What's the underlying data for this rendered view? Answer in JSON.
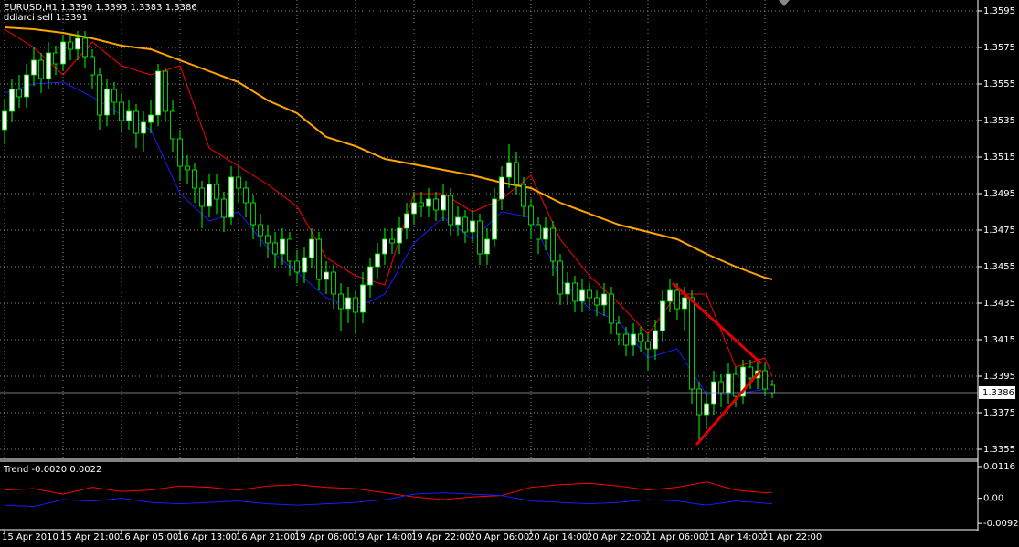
{
  "chart_data": [
    {
      "type": "candlestick",
      "header": "EURUSD,H1  1.3390 1.3393 1.3383 1.3386",
      "subheader": "ddiarci sell 1.3391",
      "categories": [
        "15 Apr 2010",
        "15 Apr 21:00",
        "16 Apr 05:00",
        "16 Apr 13:00",
        "16 Apr 21:00",
        "19 Apr 06:00",
        "19 Apr 14:00",
        "19 Apr 22:00",
        "20 Apr 06:00",
        "20 Apr 14:00",
        "20 Apr 22:00",
        "21 Apr 06:00",
        "21 Apr 14:00",
        "21 Apr 22:00"
      ],
      "open": [
        1.353,
        1.354,
        1.3552,
        1.3548,
        1.356,
        1.3568,
        1.3558,
        1.3572,
        1.3566,
        1.3578,
        1.3574,
        1.358,
        1.357,
        1.356,
        1.3538,
        1.3552,
        1.3545,
        1.3535,
        1.354,
        1.3528,
        1.3534,
        1.3538,
        1.3562,
        1.354,
        1.3525,
        1.351,
        1.3508,
        1.3498,
        1.3488,
        1.35,
        1.3492,
        1.3482,
        1.3504,
        1.3498,
        1.349,
        1.3478,
        1.3472,
        1.3468,
        1.3462,
        1.347,
        1.3458,
        1.3452,
        1.346,
        1.347,
        1.3448,
        1.3452,
        1.344,
        1.3432,
        1.3438,
        1.343,
        1.3445,
        1.3455,
        1.3462,
        1.347,
        1.3468,
        1.3476,
        1.3484,
        1.349,
        1.3488,
        1.3492,
        1.3486,
        1.3494,
        1.3478,
        1.3482,
        1.3474,
        1.348,
        1.3462,
        1.347,
        1.3492,
        1.3504,
        1.3512,
        1.35,
        1.3488,
        1.3478,
        1.347,
        1.3476,
        1.3458,
        1.344,
        1.3446,
        1.3436,
        1.3442,
        1.3438,
        1.3434,
        1.344,
        1.3424,
        1.3418,
        1.3412,
        1.3418,
        1.3414,
        1.341,
        1.342,
        1.3436,
        1.3442,
        1.3432,
        1.3438,
        1.3388,
        1.3374,
        1.338,
        1.3392,
        1.3386,
        1.3396,
        1.3384,
        1.34,
        1.3394,
        1.3398,
        1.339
      ],
      "high": [
        1.3546,
        1.3558,
        1.356,
        1.3566,
        1.3575,
        1.3572,
        1.3578,
        1.3576,
        1.3582,
        1.3582,
        1.3584,
        1.3584,
        1.3574,
        1.3564,
        1.3558,
        1.3556,
        1.355,
        1.3546,
        1.3544,
        1.354,
        1.3546,
        1.3566,
        1.3564,
        1.3546,
        1.353,
        1.3516,
        1.3512,
        1.3502,
        1.3506,
        1.3506,
        1.3496,
        1.351,
        1.351,
        1.3502,
        1.3494,
        1.3484,
        1.3478,
        1.3474,
        1.3476,
        1.3474,
        1.3464,
        1.3466,
        1.3476,
        1.3474,
        1.3458,
        1.3456,
        1.3446,
        1.3444,
        1.3442,
        1.3452,
        1.346,
        1.3468,
        1.3476,
        1.3476,
        1.3482,
        1.349,
        1.3496,
        1.3496,
        1.3498,
        1.3496,
        1.35,
        1.3498,
        1.3488,
        1.3486,
        1.3486,
        1.3484,
        1.3476,
        1.3498,
        1.351,
        1.3522,
        1.3518,
        1.3504,
        1.3492,
        1.3482,
        1.3482,
        1.348,
        1.3462,
        1.3452,
        1.345,
        1.3448,
        1.3446,
        1.3442,
        1.3446,
        1.3444,
        1.3428,
        1.3422,
        1.3424,
        1.3422,
        1.3418,
        1.3426,
        1.3442,
        1.3448,
        1.3446,
        1.3444,
        1.3442,
        1.3392,
        1.3386,
        1.3398,
        1.3396,
        1.3402,
        1.34,
        1.3404,
        1.3404,
        1.3404,
        1.3402,
        1.3393
      ],
      "low": [
        1.3522,
        1.3534,
        1.3542,
        1.3542,
        1.3554,
        1.355,
        1.3552,
        1.356,
        1.3562,
        1.3568,
        1.3568,
        1.3564,
        1.3552,
        1.353,
        1.3532,
        1.3538,
        1.3528,
        1.353,
        1.352,
        1.3518,
        1.3528,
        1.3532,
        1.3534,
        1.3518,
        1.3502,
        1.35,
        1.349,
        1.3476,
        1.3482,
        1.3484,
        1.3474,
        1.3478,
        1.349,
        1.3482,
        1.347,
        1.3466,
        1.346,
        1.3454,
        1.3456,
        1.345,
        1.3446,
        1.3446,
        1.3454,
        1.3442,
        1.344,
        1.3432,
        1.342,
        1.3424,
        1.3418,
        1.3424,
        1.3438,
        1.3448,
        1.3456,
        1.3462,
        1.3462,
        1.347,
        1.3478,
        1.3482,
        1.3482,
        1.348,
        1.348,
        1.3472,
        1.3472,
        1.3468,
        1.3468,
        1.3456,
        1.3456,
        1.3466,
        1.3486,
        1.3498,
        1.3494,
        1.3482,
        1.347,
        1.3462,
        1.3464,
        1.345,
        1.3434,
        1.3434,
        1.343,
        1.343,
        1.3432,
        1.3428,
        1.3428,
        1.3418,
        1.3412,
        1.3406,
        1.3406,
        1.3408,
        1.3398,
        1.3404,
        1.3414,
        1.343,
        1.3426,
        1.342,
        1.338,
        1.3358,
        1.3366,
        1.3374,
        1.3378,
        1.338,
        1.3378,
        1.338,
        1.3388,
        1.3388,
        1.3384,
        1.3383
      ],
      "close": [
        1.354,
        1.3552,
        1.3548,
        1.356,
        1.3568,
        1.3558,
        1.3572,
        1.3566,
        1.3578,
        1.3574,
        1.358,
        1.357,
        1.356,
        1.3538,
        1.3552,
        1.3545,
        1.3535,
        1.354,
        1.3528,
        1.3534,
        1.3538,
        1.3562,
        1.354,
        1.3525,
        1.351,
        1.3508,
        1.3498,
        1.3488,
        1.35,
        1.3492,
        1.3482,
        1.3504,
        1.3498,
        1.349,
        1.3478,
        1.3472,
        1.3468,
        1.3462,
        1.347,
        1.3458,
        1.3452,
        1.346,
        1.347,
        1.3448,
        1.3452,
        1.344,
        1.3432,
        1.3438,
        1.343,
        1.3445,
        1.3455,
        1.3462,
        1.347,
        1.3468,
        1.3476,
        1.3484,
        1.349,
        1.3488,
        1.3492,
        1.3486,
        1.3494,
        1.3478,
        1.3482,
        1.3474,
        1.348,
        1.3462,
        1.347,
        1.3492,
        1.3504,
        1.3512,
        1.35,
        1.3488,
        1.3478,
        1.347,
        1.3476,
        1.3458,
        1.344,
        1.3446,
        1.3436,
        1.3442,
        1.3438,
        1.3434,
        1.344,
        1.3424,
        1.3418,
        1.3412,
        1.3418,
        1.3414,
        1.341,
        1.342,
        1.3436,
        1.3442,
        1.3432,
        1.3438,
        1.3388,
        1.3374,
        1.338,
        1.3392,
        1.3386,
        1.3396,
        1.3384,
        1.34,
        1.3394,
        1.3398,
        1.3388,
        1.3386
      ],
      "series": [
        {
          "color": "#ff0000",
          "x": [
            0,
            4,
            8,
            12,
            16,
            20,
            24,
            28,
            32,
            36,
            40,
            44,
            48,
            52,
            56,
            60,
            64,
            68,
            72,
            76,
            80,
            84,
            88,
            92,
            96,
            100,
            104,
            105
          ],
          "values": [
            1.3585,
            1.3575,
            1.356,
            1.3578,
            1.3565,
            1.356,
            1.3565,
            1.352,
            1.351,
            1.35,
            1.3488,
            1.346,
            1.345,
            1.3445,
            1.3495,
            1.3495,
            1.3485,
            1.3492,
            1.3505,
            1.347,
            1.345,
            1.3435,
            1.3418,
            1.344,
            1.344,
            1.34,
            1.3405,
            1.3395
          ]
        },
        {
          "color": "#1a1aff",
          "x": [
            0,
            4,
            8,
            12,
            16,
            20,
            24,
            28,
            32,
            36,
            40,
            44,
            48,
            52,
            56,
            60,
            64,
            68,
            72,
            76,
            80,
            84,
            88,
            92,
            96,
            100,
            104,
            105
          ],
          "values": [
            1.355,
            1.3555,
            1.3556,
            1.3548,
            1.3538,
            1.353,
            1.3495,
            1.348,
            1.3485,
            1.3465,
            1.3452,
            1.3438,
            1.3432,
            1.344,
            1.3468,
            1.3482,
            1.347,
            1.3485,
            1.3482,
            1.3448,
            1.3432,
            1.3425,
            1.3405,
            1.341,
            1.3385,
            1.3385,
            1.3388,
            1.3388
          ]
        },
        {
          "color": "#ffa500",
          "x": [
            0,
            4,
            8,
            12,
            16,
            20,
            24,
            28,
            32,
            36,
            40,
            44,
            48,
            52,
            56,
            60,
            64,
            68,
            72,
            76,
            80,
            84,
            88,
            92,
            96,
            100,
            104,
            105
          ],
          "values": [
            1.3586,
            1.3585,
            1.3583,
            1.358,
            1.3576,
            1.3574,
            1.3568,
            1.3562,
            1.3556,
            1.3546,
            1.3539,
            1.3526,
            1.3521,
            1.3514,
            1.3511,
            1.3508,
            1.3505,
            1.3501,
            1.3498,
            1.349,
            1.3484,
            1.3478,
            1.3474,
            1.347,
            1.3462,
            1.3455,
            1.3449,
            1.3448
          ]
        }
      ],
      "last_price": 1.3386,
      "ylim": [
        1.335,
        1.3601
      ],
      "yticks": [
        1.3595,
        1.3575,
        1.3555,
        1.3535,
        1.3515,
        1.3495,
        1.3475,
        1.3455,
        1.3435,
        1.3415,
        1.3395,
        1.3375,
        1.3355
      ],
      "grid": true
    },
    {
      "type": "line",
      "title": "Trend -0.0020 0.0022",
      "series": [
        {
          "color": "#ff0000",
          "x": [
            0,
            4,
            8,
            12,
            16,
            20,
            24,
            28,
            32,
            36,
            40,
            44,
            48,
            52,
            56,
            60,
            64,
            68,
            72,
            76,
            80,
            84,
            88,
            92,
            96,
            100,
            104,
            105
          ],
          "values": [
            0.003,
            0.0035,
            0.0015,
            0.004,
            0.0025,
            0.003,
            0.0045,
            0.004,
            0.003,
            0.0045,
            0.005,
            0.004,
            0.0035,
            0.002,
            0.0005,
            -0.0005,
            0.0005,
            0.001,
            0.004,
            0.005,
            0.0055,
            0.0045,
            0.003,
            0.004,
            0.006,
            0.003,
            0.002,
            0.0022
          ]
        },
        {
          "color": "#1a1aff",
          "x": [
            0,
            4,
            8,
            12,
            16,
            20,
            24,
            28,
            32,
            36,
            40,
            44,
            48,
            52,
            56,
            60,
            64,
            68,
            72,
            76,
            80,
            84,
            88,
            92,
            96,
            100,
            104,
            105
          ],
          "values": [
            -0.0025,
            -0.003,
            -0.0005,
            -0.001,
            0.0,
            -0.0015,
            -0.002,
            -0.0015,
            -0.001,
            -0.002,
            -0.0025,
            -0.002,
            -0.0015,
            -0.0005,
            0.0015,
            0.002,
            0.0015,
            0.001,
            -0.001,
            -0.0015,
            -0.002,
            -0.0015,
            -0.0005,
            -0.001,
            -0.0025,
            -0.001,
            -0.0018,
            -0.002
          ]
        }
      ],
      "ylim": [
        -0.0115,
        0.0136
      ],
      "yticks": [
        0.0116,
        {
          "value": 0,
          "label": "0.00"
        },
        -0.0092
      ],
      "grid": false
    }
  ]
}
